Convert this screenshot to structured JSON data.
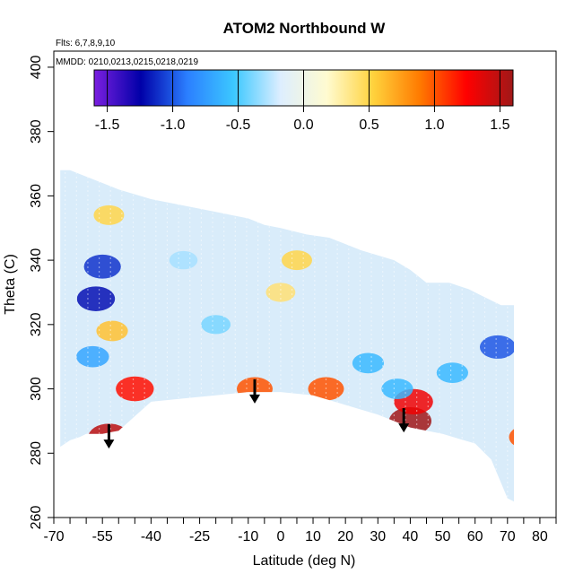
{
  "chart_data": {
    "type": "heatmap",
    "title": "ATOM2 Northbound W",
    "subtitle_flights": "Flts: 6,7,8,9,10",
    "subtitle_dates": "MMDD: 0210,0213,0215,0218,0219",
    "xlabel": "Latitude (deg N)",
    "ylabel": "Theta (C)",
    "xlim": [
      -70,
      85
    ],
    "ylim": [
      260,
      405
    ],
    "x_ticks": [
      -70,
      -55,
      -40,
      -25,
      -10,
      0,
      10,
      20,
      30,
      40,
      50,
      60,
      70,
      80
    ],
    "x_tick_labels": [
      "-70",
      "-55",
      "-40",
      "-25",
      "-10",
      "0",
      "10",
      "20",
      "30",
      "40",
      "50",
      "60",
      "70",
      "80"
    ],
    "x_minor_ticks": [
      -65,
      -60,
      -50,
      -45,
      -35,
      -30,
      -20,
      -15,
      -5,
      5,
      15,
      25,
      35,
      45,
      55,
      65,
      75,
      85
    ],
    "y_ticks": [
      260,
      280,
      300,
      320,
      340,
      360,
      380,
      400
    ],
    "y_tick_labels": [
      "260",
      "280",
      "300",
      "320",
      "340",
      "360",
      "380",
      "400"
    ],
    "colorbar": {
      "range": [
        -1.6,
        1.6
      ],
      "ticks": [
        -1.5,
        -1.0,
        -0.5,
        0.0,
        0.5,
        1.0,
        1.5
      ],
      "tick_labels": [
        "-1.5",
        "-1.0",
        "-0.5",
        "0.0",
        "0.5",
        "1.0",
        "1.5"
      ],
      "colors": [
        "#7b1fe0",
        "#0000a8",
        "#2b7fff",
        "#3cc8ff",
        "#ddeeff",
        "#fffbd0",
        "#ffd23c",
        "#ff7a00",
        "#ff0000",
        "#a01818"
      ]
    },
    "region_outline": {
      "lat": [
        -68,
        -65,
        -62,
        -60,
        -55,
        -50,
        -40,
        -30,
        -20,
        -10,
        -5,
        0,
        10,
        20,
        30,
        40,
        50,
        60,
        65,
        70,
        72,
        72,
        68,
        62,
        58,
        52,
        45,
        40,
        35,
        25,
        15,
        8,
        0,
        -5,
        -10,
        -20,
        -30,
        -40,
        -50,
        -55,
        -60,
        -65,
        -68
      ],
      "theta": [
        282,
        284,
        285,
        286,
        286,
        287,
        296,
        297,
        298,
        299,
        299,
        299,
        298,
        295,
        292,
        288,
        286,
        283,
        278,
        266,
        265,
        326,
        326,
        329,
        331,
        333,
        333,
        337,
        340,
        343,
        347,
        348,
        350,
        351,
        353,
        355,
        357,
        359,
        362,
        364,
        366,
        368,
        368
      ]
    },
    "features": [
      {
        "lat": -55,
        "theta": 338,
        "value": -1.1
      },
      {
        "lat": -57,
        "theta": 328,
        "value": -1.2
      },
      {
        "lat": -58,
        "theta": 310,
        "value": -0.7
      },
      {
        "lat": -52,
        "theta": 318,
        "value": 0.6
      },
      {
        "lat": -53,
        "theta": 354,
        "value": 0.5
      },
      {
        "lat": -45,
        "theta": 300,
        "value": 1.2
      },
      {
        "lat": -53,
        "theta": 285,
        "value": 1.5
      },
      {
        "lat": -8,
        "theta": 300,
        "value": 1.0
      },
      {
        "lat": 14,
        "theta": 300,
        "value": 1.0
      },
      {
        "lat": 40,
        "theta": 290,
        "value": 1.6
      },
      {
        "lat": 41,
        "theta": 296,
        "value": 1.3
      },
      {
        "lat": 36,
        "theta": 300,
        "value": -0.6
      },
      {
        "lat": 27,
        "theta": 308,
        "value": -0.6
      },
      {
        "lat": 53,
        "theta": 305,
        "value": -0.6
      },
      {
        "lat": 67,
        "theta": 313,
        "value": -1.0
      },
      {
        "lat": 76,
        "theta": 285,
        "value": 1.0
      },
      {
        "lat": 5,
        "theta": 340,
        "value": 0.5
      },
      {
        "lat": 0,
        "theta": 330,
        "value": 0.4
      },
      {
        "lat": -20,
        "theta": 320,
        "value": -0.4
      },
      {
        "lat": -30,
        "theta": 340,
        "value": -0.3
      }
    ],
    "arrows": [
      {
        "lat": -53,
        "theta_from": 289,
        "theta_to": 282
      },
      {
        "lat": -8,
        "theta_from": 303,
        "theta_to": 296
      },
      {
        "lat": 38,
        "theta_from": 294,
        "theta_to": 287
      }
    ]
  }
}
